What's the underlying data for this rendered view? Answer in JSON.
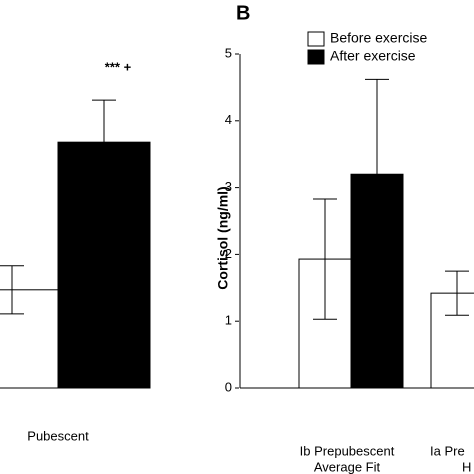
{
  "chart_data": [
    {
      "type": "bar",
      "annotation": "*** +",
      "categories": [
        "Pubescent"
      ],
      "series": [
        {
          "name": null,
          "color": "#ffffff",
          "values": [
            1.47
          ],
          "errors": [
            0.36
          ]
        },
        {
          "name": null,
          "color": "#000000",
          "values": [
            3.68
          ],
          "errors": [
            0.63
          ]
        }
      ],
      "ylim": [
        0,
        5
      ]
    },
    {
      "type": "bar",
      "panel_label": "B",
      "ylabel": "Cortisol (ng/ml)",
      "categories": [
        [
          "Ib Prepubescent",
          "Average Fit"
        ],
        [
          "Ia Pre",
          "H"
        ]
      ],
      "series": [
        {
          "name": "Before exercise",
          "color": "#ffffff",
          "values": [
            1.93,
            1.42
          ],
          "errors": [
            0.9,
            0.33
          ]
        },
        {
          "name": "After exercise",
          "color": "#000000",
          "values": [
            3.2,
            null
          ],
          "errors": [
            1.42,
            null
          ]
        }
      ],
      "ylim": [
        0,
        5
      ],
      "yticks": [
        0,
        1,
        2,
        3,
        4,
        5
      ],
      "legend": "top-right"
    }
  ]
}
